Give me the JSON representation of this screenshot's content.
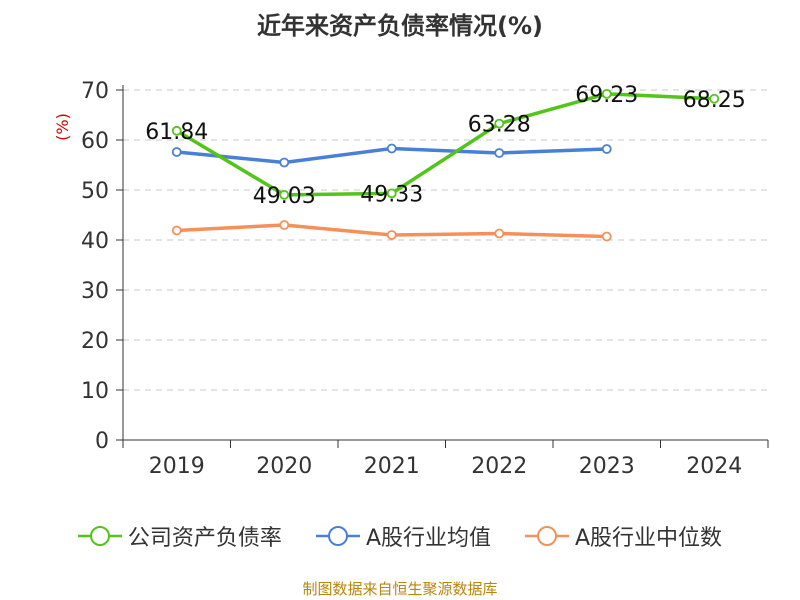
{
  "chart_data": {
    "type": "line",
    "title": "近年来资产负债率情况(%)",
    "ylabel": "(%)",
    "xlabel": "",
    "categories": [
      "2019",
      "2020",
      "2021",
      "2022",
      "2023",
      "2024"
    ],
    "ylim": [
      0,
      70
    ],
    "yticks": [
      0,
      10,
      20,
      30,
      40,
      50,
      60,
      70
    ],
    "grid": true,
    "legend_position": "bottom",
    "series": [
      {
        "name": "公司资产负债率",
        "color": "#52c41a",
        "values": [
          61.84,
          49.03,
          49.33,
          63.28,
          69.23,
          68.25
        ],
        "labels": [
          "61.84",
          "49.03",
          "49.33",
          "63.28",
          "69.23",
          "68.25"
        ]
      },
      {
        "name": "A股行业均值",
        "color": "#4a7fd8",
        "values": [
          57.6,
          55.5,
          58.3,
          57.4,
          58.2,
          null
        ]
      },
      {
        "name": "A股行业中位数",
        "color": "#f4915b",
        "values": [
          41.9,
          43.0,
          41.0,
          41.3,
          40.7,
          null
        ]
      }
    ]
  },
  "source": "制图数据来自恒生聚源数据库"
}
